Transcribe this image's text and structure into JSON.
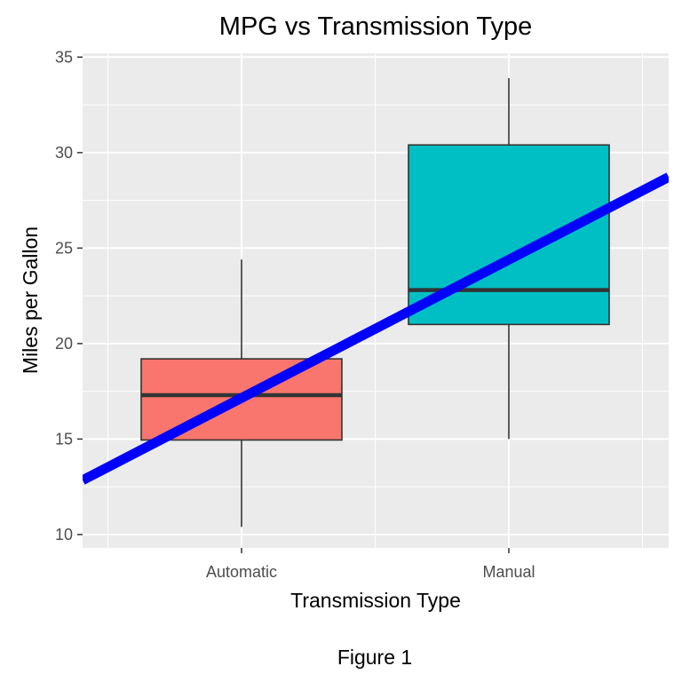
{
  "chart_data": {
    "type": "box",
    "title": "MPG vs Transmission Type",
    "xlabel": "Transmission Type",
    "ylabel": "Miles per Gallon",
    "caption": "Figure 1",
    "categories": [
      "Automatic",
      "Manual"
    ],
    "ylim": [
      9.3,
      35.2
    ],
    "yticks": [
      10,
      15,
      20,
      25,
      30,
      35
    ],
    "boxes": [
      {
        "category": "Automatic",
        "min": 10.4,
        "q1": 14.95,
        "median": 17.3,
        "q3": 19.2,
        "max": 24.4,
        "fill": "#F8766D"
      },
      {
        "category": "Manual",
        "min": 15.0,
        "q1": 21.0,
        "median": 22.8,
        "q3": 30.4,
        "max": 33.9,
        "fill": "#00BFC4"
      }
    ],
    "trend_line": {
      "color": "#0000FF",
      "at_automatic": 17.15,
      "at_manual": 24.39
    },
    "colors": {
      "panel": "#EBEBEB",
      "grid": "#FFFFFF",
      "box_outline": "#333333",
      "trend": "#0000FF"
    },
    "grid": true,
    "legend": "none"
  }
}
